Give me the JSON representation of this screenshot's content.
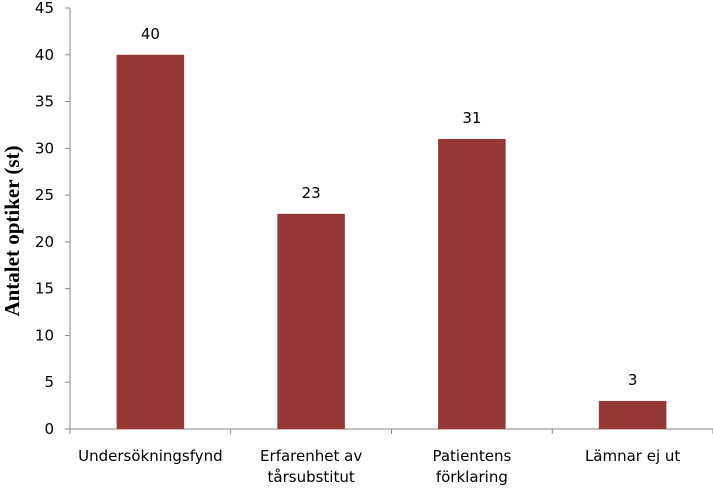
{
  "chart_data": {
    "type": "bar",
    "title": "",
    "xlabel": "",
    "ylabel": "Antalet optiker (st)",
    "ylim": [
      0,
      45
    ],
    "ytick_step": 5,
    "yticks": [
      "0",
      "5",
      "10",
      "15",
      "20",
      "25",
      "30",
      "35",
      "40",
      "45"
    ],
    "grid": false,
    "legend": "none",
    "bar_color": "#953735",
    "categories": [
      [
        "Undersökningsfynd"
      ],
      [
        "Erfarenhet av",
        "tårsubstitut"
      ],
      [
        "Patientens",
        "förklaring"
      ],
      [
        "Lämnar ej ut"
      ]
    ],
    "values": [
      40,
      23,
      31,
      3
    ],
    "data_labels": [
      "40",
      "23",
      "31",
      "3"
    ]
  }
}
